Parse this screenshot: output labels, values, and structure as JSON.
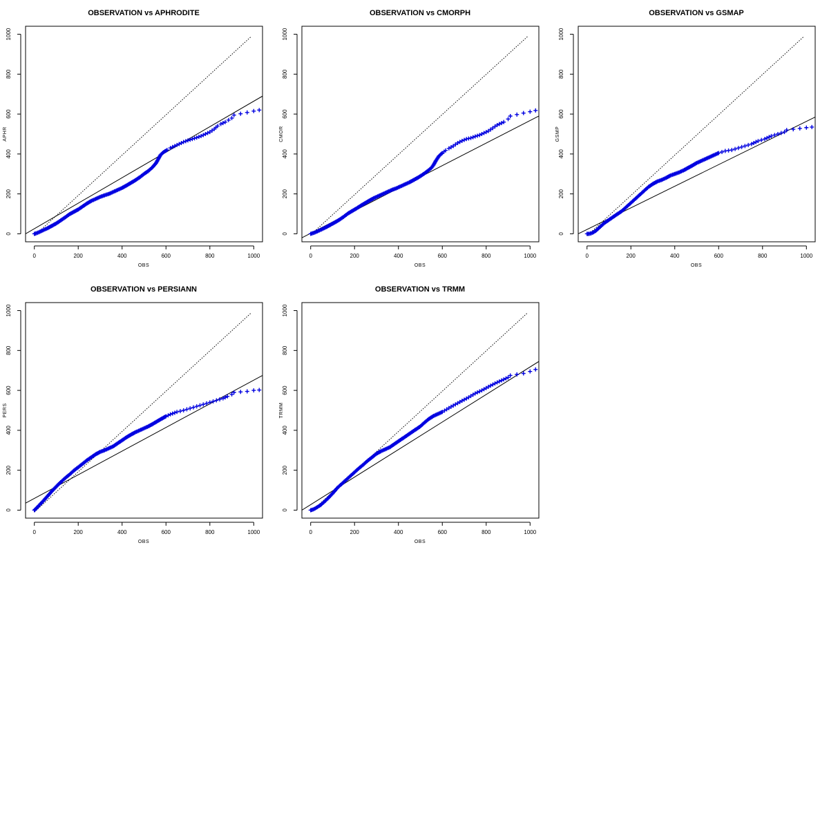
{
  "chart_data": [
    {
      "type": "scatter",
      "title": "OBSERVATION vs APHRODITE",
      "xlabel": "OBS",
      "ylabel": "APHR",
      "xlim": [
        -40,
        1040
      ],
      "ylim": [
        -40,
        1040
      ],
      "xticks": [
        "0",
        "200",
        "400",
        "600",
        "800",
        "1000"
      ],
      "yticks": [
        "0",
        "200",
        "400",
        "600",
        "800",
        "1000"
      ],
      "grid": false,
      "marker": "+",
      "marker_color": "#0000e0",
      "series": [
        {
          "x": [
            0,
            10,
            25,
            40,
            60,
            80,
            100,
            120,
            140,
            160,
            180,
            200,
            220,
            240,
            260,
            280,
            300,
            320,
            340,
            360,
            380,
            400,
            420,
            440,
            460,
            480,
            500,
            520,
            540,
            555,
            565,
            575,
            590,
            605,
            620,
            640,
            660,
            680,
            700,
            720,
            740,
            760,
            780,
            800,
            820,
            835,
            850,
            870,
            885,
            900,
            910,
            970,
            1000,
            1025
          ],
          "y": [
            0,
            3,
            10,
            18,
            28,
            40,
            52,
            67,
            82,
            98,
            110,
            122,
            137,
            152,
            165,
            175,
            185,
            193,
            200,
            210,
            220,
            230,
            242,
            255,
            268,
            283,
            300,
            315,
            335,
            355,
            375,
            395,
            410,
            420,
            430,
            440,
            450,
            460,
            468,
            475,
            482,
            490,
            500,
            510,
            525,
            540,
            550,
            560,
            570,
            580,
            595,
            608,
            615,
            620
          ]
        }
      ],
      "reference_lines": [
        {
          "style": "dotted",
          "x": [
            0,
            990
          ],
          "y": [
            -10,
            990
          ]
        },
        {
          "style": "solid",
          "x": [
            -40,
            1040
          ],
          "y": [
            0,
            690
          ]
        }
      ]
    },
    {
      "type": "scatter",
      "title": "OBSERVATION vs CMORPH",
      "xlabel": "OBS",
      "ylabel": "CMOR",
      "xlim": [
        -40,
        1040
      ],
      "ylim": [
        -40,
        1040
      ],
      "xticks": [
        "0",
        "200",
        "400",
        "600",
        "800",
        "1000"
      ],
      "yticks": [
        "0",
        "200",
        "400",
        "600",
        "800",
        "1000"
      ],
      "grid": false,
      "marker": "+",
      "marker_color": "#0000e0",
      "series": [
        {
          "x": [
            0,
            15,
            30,
            50,
            70,
            90,
            110,
            130,
            150,
            170,
            190,
            210,
            230,
            250,
            270,
            290,
            310,
            330,
            350,
            370,
            390,
            410,
            430,
            450,
            470,
            490,
            510,
            530,
            550,
            560,
            570,
            585,
            600,
            615,
            630,
            650,
            670,
            690,
            710,
            730,
            750,
            770,
            790,
            810,
            830,
            850,
            880,
            900,
            910,
            970,
            1000,
            1025
          ],
          "y": [
            0,
            5,
            12,
            22,
            33,
            45,
            57,
            70,
            85,
            102,
            115,
            128,
            142,
            155,
            168,
            180,
            190,
            200,
            210,
            220,
            228,
            238,
            248,
            258,
            270,
            282,
            296,
            312,
            330,
            345,
            365,
            390,
            405,
            418,
            428,
            440,
            455,
            466,
            475,
            480,
            488,
            495,
            505,
            515,
            530,
            545,
            560,
            575,
            590,
            605,
            612,
            618
          ]
        }
      ],
      "reference_lines": [
        {
          "style": "dotted",
          "x": [
            0,
            990
          ],
          "y": [
            -5,
            990
          ]
        },
        {
          "style": "solid",
          "x": [
            -40,
            1040
          ],
          "y": [
            -20,
            590
          ]
        }
      ]
    },
    {
      "type": "scatter",
      "title": "OBSERVATION vs GSMAP",
      "xlabel": "OBS",
      "ylabel": "GSMP",
      "xlim": [
        -40,
        1040
      ],
      "ylim": [
        -40,
        1040
      ],
      "xticks": [
        "0",
        "200",
        "400",
        "600",
        "800",
        "1000"
      ],
      "yticks": [
        "0",
        "200",
        "400",
        "600",
        "800",
        "1000"
      ],
      "grid": false,
      "marker": "+",
      "marker_color": "#0000e0",
      "series": [
        {
          "x": [
            0,
            10,
            20,
            30,
            40,
            50,
            65,
            80,
            100,
            120,
            140,
            160,
            180,
            200,
            220,
            240,
            260,
            280,
            300,
            320,
            340,
            360,
            380,
            400,
            420,
            440,
            460,
            480,
            500,
            520,
            540,
            560,
            580,
            600,
            630,
            660,
            690,
            720,
            750,
            780,
            810,
            840,
            870,
            900,
            910,
            970,
            1000,
            1025
          ],
          "y": [
            0,
            0,
            3,
            8,
            15,
            25,
            40,
            55,
            70,
            85,
            100,
            115,
            135,
            155,
            175,
            195,
            215,
            235,
            250,
            262,
            270,
            280,
            292,
            300,
            308,
            318,
            330,
            342,
            355,
            365,
            375,
            385,
            395,
            405,
            415,
            420,
            430,
            440,
            450,
            465,
            475,
            490,
            500,
            510,
            520,
            528,
            532,
            535
          ]
        }
      ],
      "reference_lines": [
        {
          "style": "dotted",
          "x": [
            0,
            990
          ],
          "y": [
            -10,
            990
          ]
        },
        {
          "style": "solid",
          "x": [
            -40,
            1040
          ],
          "y": [
            0,
            585
          ]
        }
      ]
    },
    {
      "type": "scatter",
      "title": "OBSERVATION vs PERSIANN",
      "xlabel": "OBS",
      "ylabel": "PERS",
      "xlim": [
        -40,
        1040
      ],
      "ylim": [
        -40,
        1040
      ],
      "xticks": [
        "0",
        "200",
        "400",
        "600",
        "800",
        "1000"
      ],
      "yticks": [
        "0",
        "200",
        "400",
        "600",
        "800",
        "1000"
      ],
      "grid": false,
      "marker": "+",
      "marker_color": "#0000e0",
      "series": [
        {
          "x": [
            0,
            10,
            25,
            40,
            60,
            80,
            100,
            120,
            140,
            160,
            180,
            200,
            220,
            240,
            260,
            280,
            300,
            320,
            340,
            360,
            380,
            400,
            420,
            440,
            460,
            480,
            500,
            520,
            540,
            560,
            580,
            600,
            620,
            650,
            680,
            710,
            740,
            770,
            800,
            830,
            860,
            880,
            900,
            910,
            970,
            1000,
            1025
          ],
          "y": [
            0,
            10,
            28,
            45,
            70,
            95,
            118,
            140,
            160,
            178,
            198,
            215,
            232,
            250,
            265,
            280,
            292,
            300,
            310,
            320,
            335,
            350,
            365,
            378,
            390,
            400,
            410,
            420,
            432,
            445,
            458,
            470,
            480,
            492,
            500,
            510,
            520,
            530,
            540,
            550,
            560,
            570,
            580,
            590,
            595,
            600,
            602
          ]
        }
      ],
      "reference_lines": [
        {
          "style": "dotted",
          "x": [
            0,
            990
          ],
          "y": [
            -10,
            990
          ]
        },
        {
          "style": "solid",
          "x": [
            -40,
            1040
          ],
          "y": [
            35,
            675
          ]
        }
      ]
    },
    {
      "type": "scatter",
      "title": "OBSERVATION vs TRMM",
      "xlabel": "OBS",
      "ylabel": "TRMM",
      "xlim": [
        -40,
        1040
      ],
      "ylim": [
        -40,
        1040
      ],
      "xticks": [
        "0",
        "200",
        "400",
        "600",
        "800",
        "1000"
      ],
      "yticks": [
        "0",
        "200",
        "400",
        "600",
        "800",
        "1000"
      ],
      "grid": false,
      "marker": "+",
      "marker_color": "#0000e0",
      "series": [
        {
          "x": [
            0,
            10,
            20,
            30,
            45,
            60,
            75,
            90,
            105,
            120,
            140,
            160,
            180,
            200,
            220,
            240,
            260,
            280,
            300,
            320,
            340,
            360,
            380,
            400,
            420,
            440,
            460,
            480,
            500,
            520,
            540,
            560,
            580,
            600,
            620,
            640,
            660,
            690,
            720,
            750,
            780,
            810,
            840,
            870,
            900,
            910,
            970,
            1000,
            1025
          ],
          "y": [
            0,
            3,
            8,
            15,
            25,
            40,
            55,
            72,
            90,
            110,
            130,
            150,
            170,
            190,
            210,
            228,
            248,
            265,
            283,
            295,
            305,
            315,
            330,
            345,
            360,
            375,
            390,
            405,
            420,
            440,
            458,
            472,
            482,
            492,
            505,
            518,
            530,
            548,
            565,
            585,
            600,
            618,
            635,
            650,
            665,
            675,
            685,
            695,
            705
          ]
        }
      ],
      "reference_lines": [
        {
          "style": "dotted",
          "x": [
            0,
            990
          ],
          "y": [
            -10,
            990
          ]
        },
        {
          "style": "solid",
          "x": [
            -40,
            1040
          ],
          "y": [
            0,
            745
          ]
        }
      ]
    }
  ]
}
